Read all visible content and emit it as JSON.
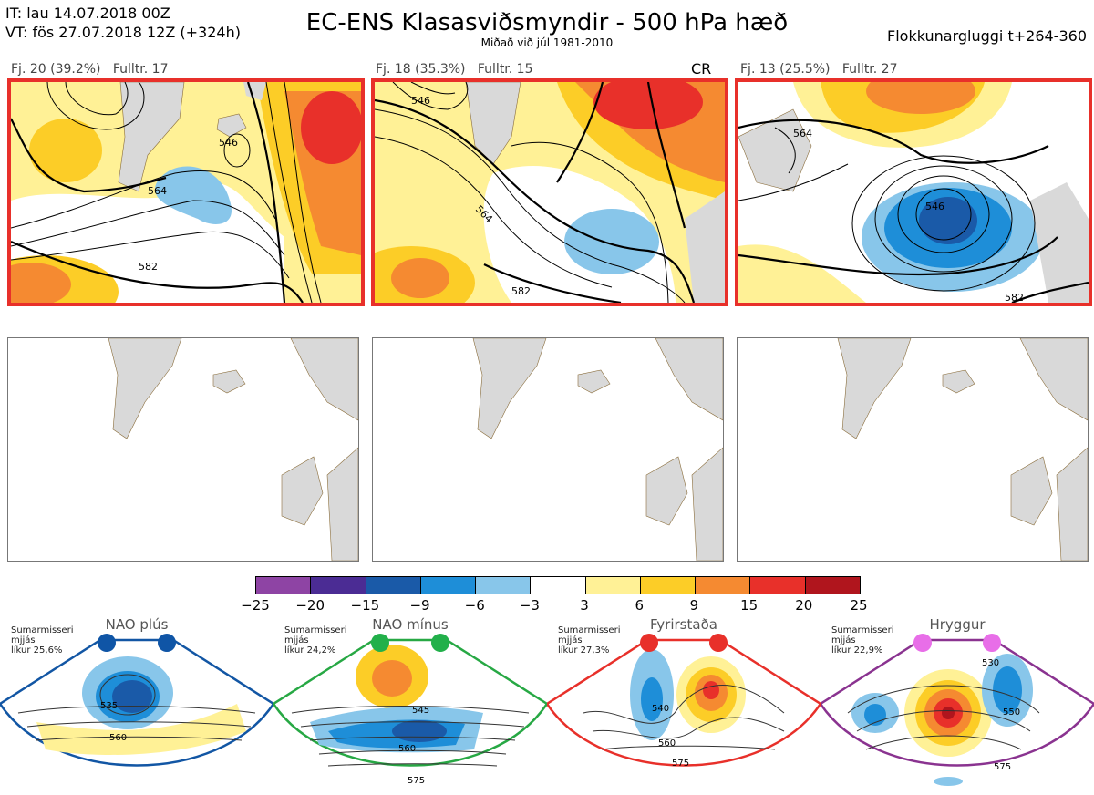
{
  "header": {
    "line1": "IT: lau 14.07.2018 00Z",
    "line2": "VT: fös 27.07.2018 12Z  (+324h)",
    "title": "EC-ENS Klasasviðsmyndir - 500 hPa hæð",
    "subtitle": "Miðað við júl 1981-2010",
    "window": "Flokkunargluggi t+264-360"
  },
  "clusters": [
    {
      "label": "Fj. 20 (39.2%)",
      "rep": "Fulltr. 17",
      "tag": "",
      "contours": [
        "564",
        "582",
        "546"
      ]
    },
    {
      "label": "Fj. 18 (35.3%)",
      "rep": "Fulltr. 15",
      "tag": "CR",
      "contours": [
        "564",
        "582",
        "546"
      ]
    },
    {
      "label": "Fj. 13 (25.5%)",
      "rep": "Fulltr. 27",
      "tag": "",
      "contours": [
        "564",
        "546",
        "582"
      ]
    }
  ],
  "colorbar": {
    "colors": [
      "#8e44a4",
      "#4b2c94",
      "#1a5aa8",
      "#1e8ed8",
      "#88c6ea",
      "#ffffff",
      "#fff196",
      "#fccd27",
      "#f58a31",
      "#e8302a",
      "#b0151d"
    ],
    "ticks": [
      "−25",
      "−20",
      "−15",
      "−9",
      "−6",
      "−3",
      "3",
      "6",
      "9",
      "15",
      "20",
      "25"
    ]
  },
  "regimes": [
    {
      "name": "NAO plús",
      "note": [
        "Sumarmisseri",
        "mjjás",
        "líkur 25,6%"
      ],
      "color": "#1256a4",
      "dot": "#0f55a6",
      "labels": [
        "535",
        "560"
      ]
    },
    {
      "name": "NAO mínus",
      "note": [
        "Sumarmisseri",
        "mjjás",
        "líkur 24,2%"
      ],
      "color": "#27a844",
      "dot": "#22b04a",
      "labels": [
        "545",
        "560",
        "575"
      ]
    },
    {
      "name": "Fyrirstaða",
      "note": [
        "Sumarmisseri",
        "mjjás",
        "líkur 27,3%"
      ],
      "color": "#e8302a",
      "dot": "#e8302a",
      "labels": [
        "540",
        "560",
        "575"
      ]
    },
    {
      "name": "Hryggur",
      "note": [
        "Sumarmisseri",
        "mjjás",
        "líkur 22,9%"
      ],
      "color": "#8a3390",
      "dot": "#e86ee8",
      "labels": [
        "530",
        "550",
        "575"
      ]
    }
  ]
}
